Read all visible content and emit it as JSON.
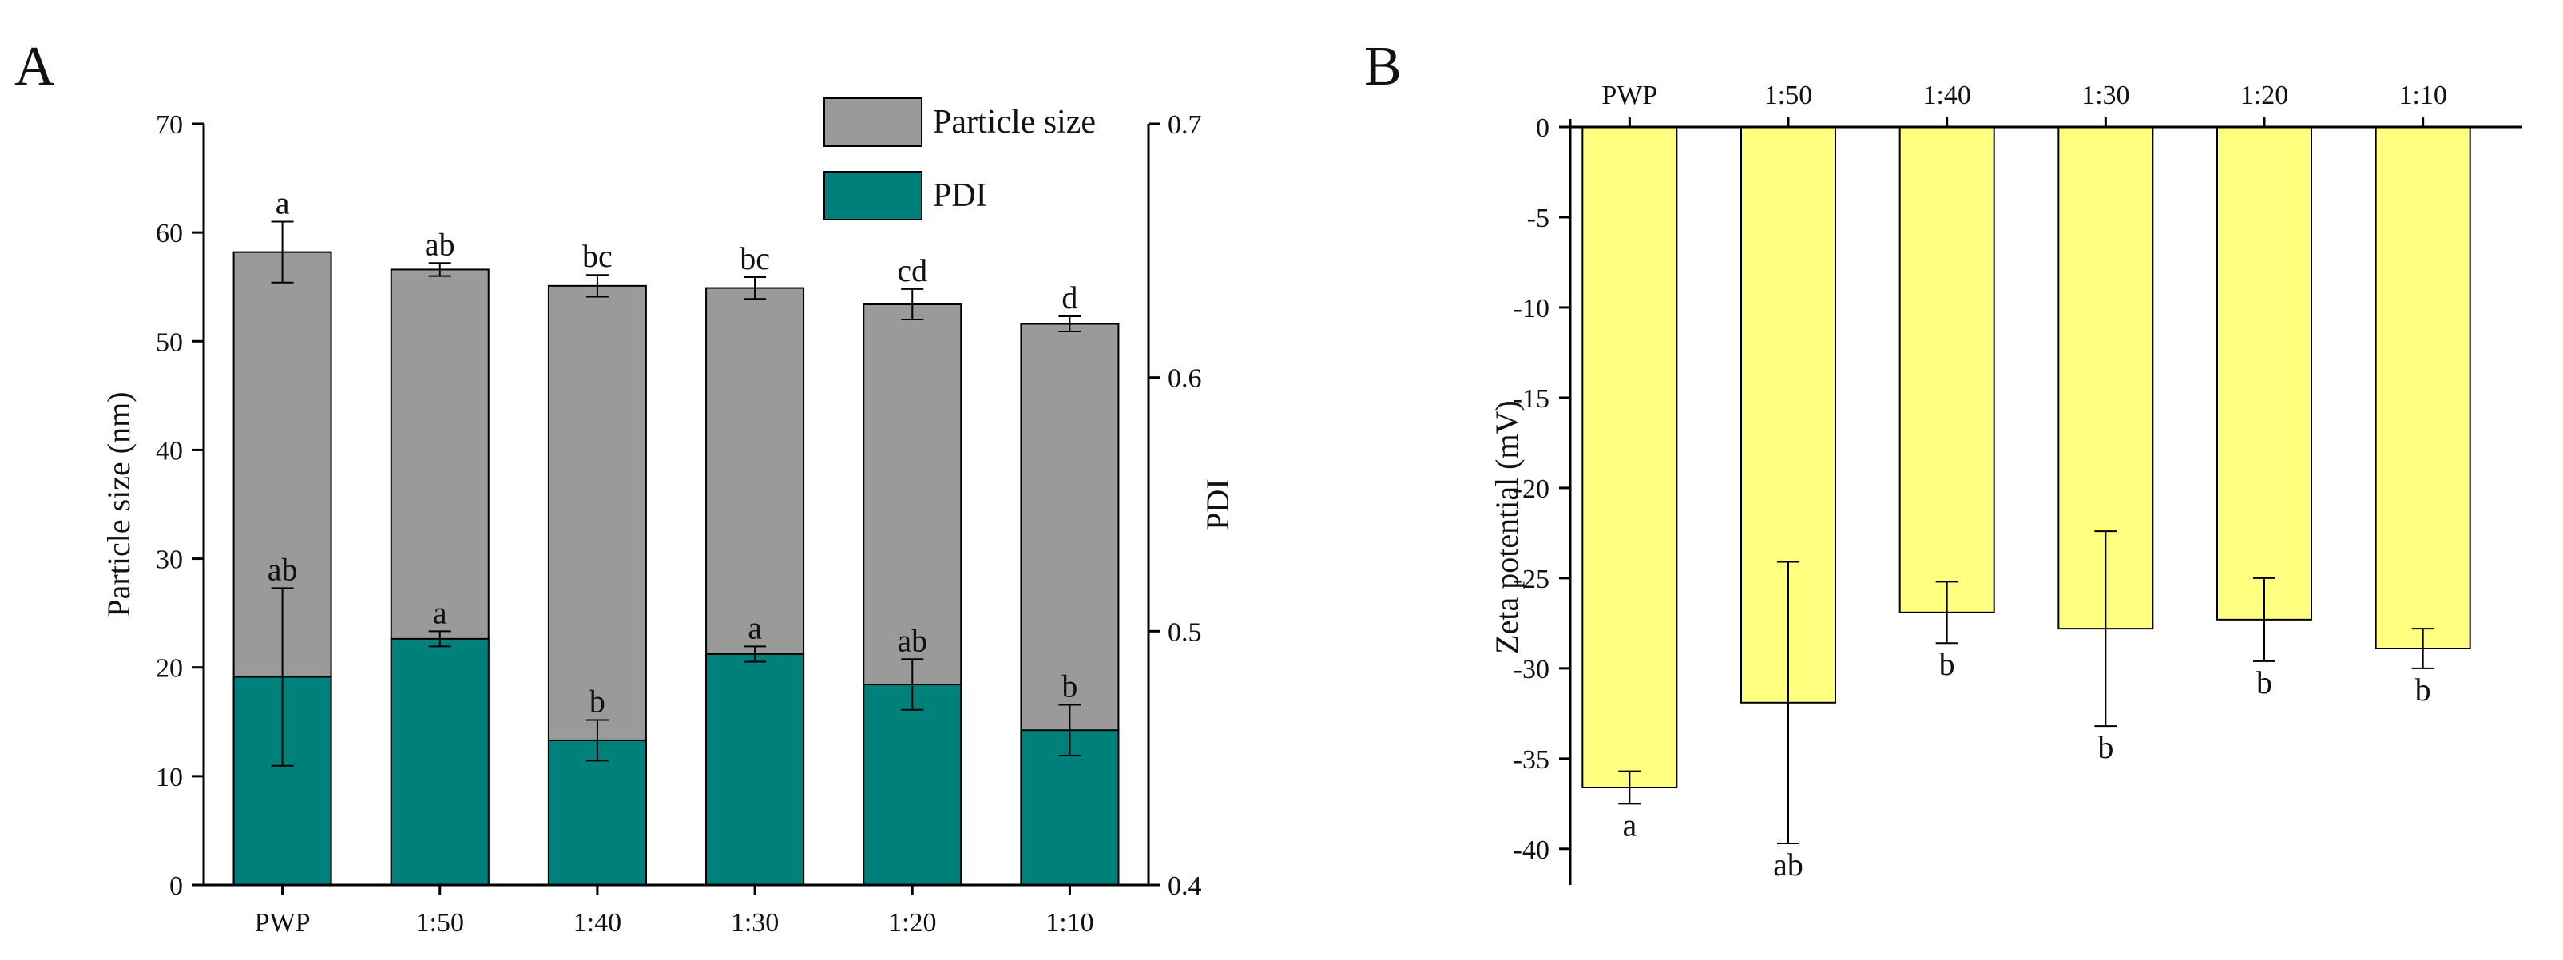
{
  "panels": {
    "a_label": "A",
    "b_label": "B"
  },
  "chart_data": [
    {
      "panel": "A",
      "type": "bar",
      "categories": [
        "PWP",
        "1:50",
        "1:40",
        "1:30",
        "1:20",
        "1:10"
      ],
      "ylabel": "Particle size (nm)",
      "ylabel_right": "PDI",
      "ylim": [
        0,
        70
      ],
      "ylim_right": [
        0.4,
        0.7
      ],
      "yticks": [
        0,
        10,
        20,
        30,
        40,
        50,
        60,
        70
      ],
      "yticks_right": [
        "0.4",
        "0.5",
        "0.6",
        "0.7"
      ],
      "grid": false,
      "legend_position": "top-right",
      "series": [
        {
          "name": "Particle size",
          "axis": "left",
          "color": "#9a9a9a",
          "values": [
            58.2,
            56.6,
            55.1,
            54.9,
            53.4,
            51.6
          ],
          "errors": [
            2.8,
            0.6,
            1.0,
            1.0,
            1.4,
            0.7
          ],
          "labels": [
            "a",
            "ab",
            "bc",
            "bc",
            "cd",
            "d"
          ]
        },
        {
          "name": "PDI",
          "axis": "right",
          "color": "#00807a",
          "values": [
            0.482,
            0.497,
            0.457,
            0.491,
            0.479,
            0.461
          ],
          "errors": [
            0.035,
            0.003,
            0.008,
            0.003,
            0.01,
            0.01
          ],
          "labels": [
            "ab",
            "a",
            "b",
            "a",
            "ab",
            "b"
          ]
        }
      ]
    },
    {
      "panel": "B",
      "type": "bar",
      "categories": [
        "PWP",
        "1:50",
        "1:40",
        "1:30",
        "1:20",
        "1:10"
      ],
      "ylabel": "Zeta potential (mV)",
      "ylim": [
        -42,
        0
      ],
      "yticks": [
        0,
        -5,
        -10,
        -15,
        -20,
        -25,
        -30,
        -35,
        -40
      ],
      "grid": false,
      "series": [
        {
          "color": "#ffff80",
          "values": [
            -36.6,
            -31.9,
            -26.9,
            -27.8,
            -27.3,
            -28.9
          ],
          "errors": [
            0.9,
            7.8,
            1.7,
            5.4,
            2.3,
            1.1
          ],
          "labels": [
            "a",
            "ab",
            "b",
            "b",
            "b",
            "b"
          ]
        }
      ]
    }
  ]
}
